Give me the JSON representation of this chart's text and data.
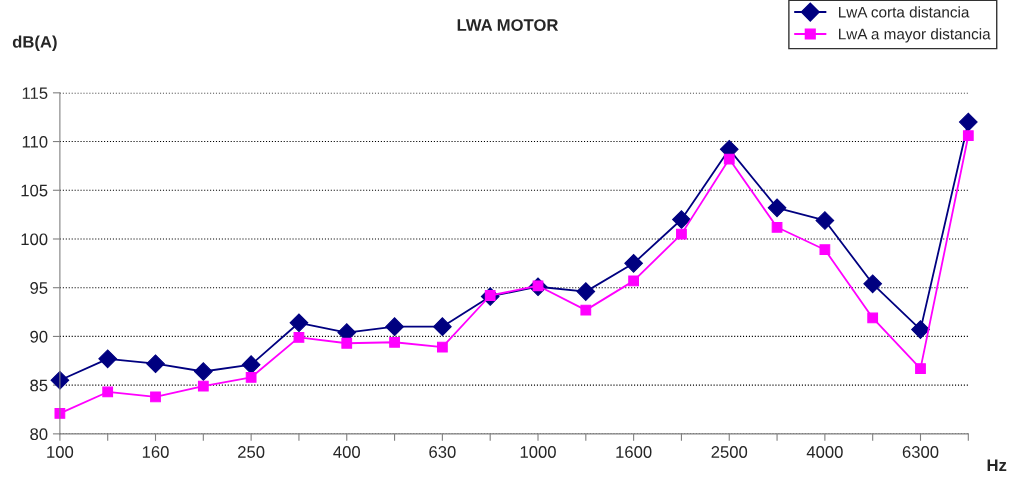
{
  "chart_data": {
    "type": "line",
    "title": "LWA MOTOR",
    "ylabel": "dB(A)",
    "xlabel": "Hz",
    "categories": [
      "100",
      null,
      "160",
      null,
      "250",
      null,
      "400",
      null,
      "630",
      null,
      "1000",
      null,
      "1600",
      null,
      "2500",
      null,
      "4000",
      null,
      "6300",
      null
    ],
    "series": [
      {
        "name": "LwA corta distancia",
        "color": "#000080",
        "marker": "diamond",
        "values": [
          85.5,
          87.7,
          87.2,
          86.4,
          87.1,
          91.4,
          90.4,
          91.0,
          91.0,
          94.1,
          95.1,
          94.6,
          97.5,
          102.0,
          109.2,
          103.2,
          101.9,
          95.4,
          90.7,
          112.0
        ]
      },
      {
        "name": "LwA a mayor distancia",
        "color": "#ff00ff",
        "marker": "square",
        "values": [
          82.1,
          84.3,
          83.8,
          84.9,
          85.8,
          89.9,
          89.3,
          89.4,
          88.9,
          94.2,
          95.2,
          92.7,
          95.7,
          100.5,
          108.2,
          101.2,
          98.9,
          91.9,
          86.7,
          110.6
        ]
      }
    ],
    "ylim": [
      80,
      115
    ],
    "yticks": [
      80,
      85,
      90,
      95,
      100,
      105,
      110,
      115
    ],
    "grid": "y",
    "legend": "top right",
    "line_style": "solid"
  }
}
